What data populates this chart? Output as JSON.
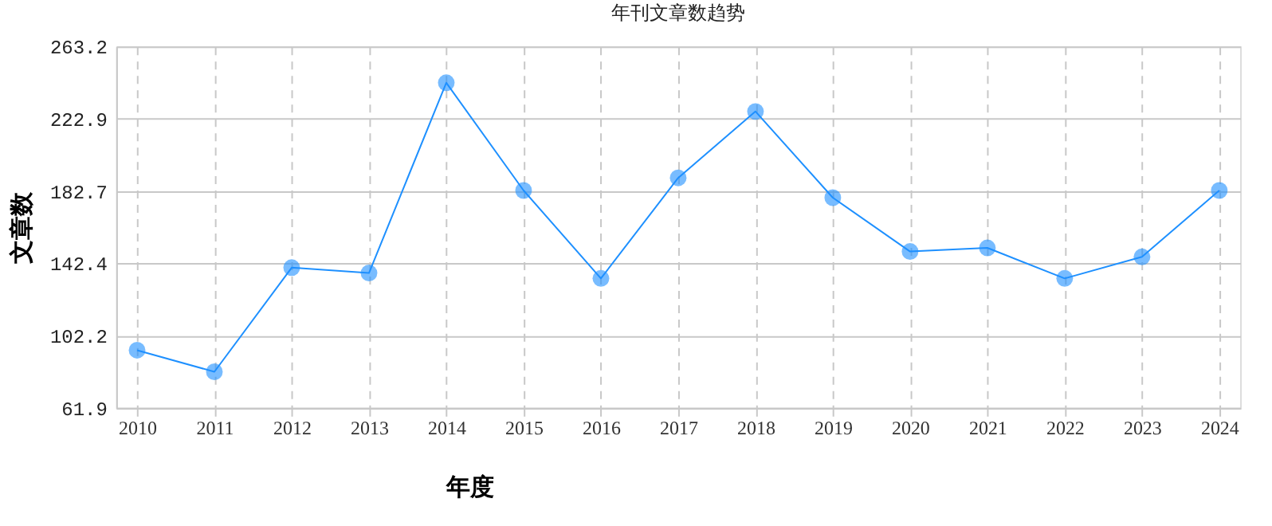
{
  "chart_data": {
    "type": "line",
    "title": "年刊文章数趋势",
    "xlabel": "年度",
    "ylabel": "文章数",
    "categories": [
      "2010",
      "2011",
      "2012",
      "2013",
      "2014",
      "2015",
      "2016",
      "2017",
      "2018",
      "2019",
      "2020",
      "2021",
      "2022",
      "2023",
      "2024"
    ],
    "series": [
      {
        "color": "#1e90ff",
        "values": [
          94,
          82,
          140,
          137,
          243,
          183,
          134,
          190,
          227,
          179,
          149,
          151,
          134,
          146,
          183
        ]
      }
    ],
    "ylim": [
      61.9,
      263.2
    ],
    "yticks": [
      61.9,
      102.2,
      142.4,
      182.7,
      222.9,
      263.2
    ],
    "grid": true,
    "marker": "circle",
    "line_style": "solid"
  }
}
